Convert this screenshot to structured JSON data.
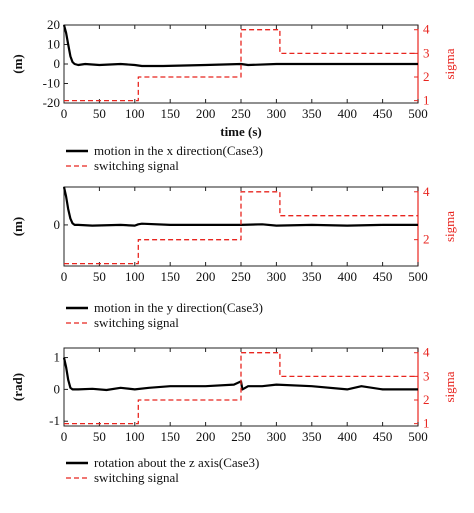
{
  "chart_data": [
    {
      "type": "line",
      "ylabel": "(m)",
      "y2label": "sigma",
      "xlabel": "time (s)",
      "xlim": [
        0,
        500
      ],
      "ylim": [
        -20,
        20
      ],
      "y2lim": [
        0.9,
        4.2
      ],
      "xticks": [
        0,
        50,
        100,
        150,
        200,
        250,
        300,
        350,
        400,
        450,
        500
      ],
      "yticks": [
        -20,
        -10,
        0,
        10,
        20
      ],
      "y2ticks": [
        1,
        2,
        3,
        4
      ],
      "legend": {
        "position": "below",
        "entries": [
          "motion in the x direction(Case3)",
          "switching signal"
        ]
      },
      "series": [
        {
          "name": "motion in the x direction(Case3)",
          "color": "#000000",
          "axis": "left",
          "x": [
            0,
            3,
            6,
            9,
            12,
            15,
            20,
            30,
            50,
            80,
            100,
            110,
            140,
            200,
            250,
            260,
            300,
            350,
            400,
            450,
            500
          ],
          "y": [
            20,
            16,
            10,
            4,
            1,
            0,
            -0.5,
            0,
            -0.5,
            0,
            -0.5,
            -1,
            -1,
            -0.5,
            0,
            -0.5,
            0,
            0,
            0,
            0,
            0
          ]
        },
        {
          "name": "switching signal",
          "color": "#e8251f",
          "axis": "right",
          "x": [
            0,
            105,
            105,
            250,
            250,
            305,
            305,
            500
          ],
          "y": [
            1,
            1,
            2,
            2,
            4,
            4,
            3,
            3
          ]
        }
      ]
    },
    {
      "type": "line",
      "ylabel": "(m)",
      "y2label": "sigma",
      "xlabel": "",
      "xlim": [
        0,
        500
      ],
      "ylim": [
        -1.3,
        1.2
      ],
      "y2lim": [
        0.9,
        4.2
      ],
      "xticks": [
        0,
        50,
        100,
        150,
        200,
        250,
        300,
        350,
        400,
        450,
        500
      ],
      "yticks": [
        0
      ],
      "y2ticks": [
        2,
        4
      ],
      "legend": {
        "position": "below",
        "entries": [
          "motion in the y direction(Case3)",
          "switching signal"
        ]
      },
      "series": [
        {
          "name": "motion in the y direction(Case3)",
          "color": "#000000",
          "axis": "left",
          "x": [
            0,
            3,
            6,
            9,
            12,
            15,
            20,
            40,
            80,
            100,
            105,
            110,
            150,
            200,
            250,
            280,
            300,
            350,
            400,
            450,
            500
          ],
          "y": [
            1.2,
            0.9,
            0.5,
            0.2,
            0.05,
            0,
            0,
            -0.02,
            0,
            -0.02,
            0.02,
            0.04,
            0,
            0,
            0,
            0.02,
            -0.02,
            0,
            -0.02,
            0,
            0
          ]
        },
        {
          "name": "switching signal",
          "color": "#e8251f",
          "axis": "right",
          "x": [
            0,
            105,
            105,
            250,
            250,
            305,
            305,
            500
          ],
          "y": [
            1,
            1,
            2,
            2,
            4,
            4,
            3,
            3
          ]
        }
      ]
    },
    {
      "type": "line",
      "ylabel": "(rad)",
      "y2label": "sigma",
      "xlabel": "",
      "xlim": [
        0,
        500
      ],
      "ylim": [
        -1.15,
        1.3
      ],
      "y2lim": [
        0.9,
        4.2
      ],
      "xticks": [
        0,
        50,
        100,
        150,
        200,
        250,
        300,
        350,
        400,
        450,
        500
      ],
      "yticks": [
        -1,
        0,
        1
      ],
      "y2ticks": [
        1,
        2,
        3,
        4
      ],
      "legend": {
        "position": "below",
        "entries": [
          "rotation about the z axis(Case3)",
          "switching signal"
        ]
      },
      "series": [
        {
          "name": "rotation about the z axis(Case3)",
          "color": "#000000",
          "axis": "left",
          "x": [
            0,
            3,
            6,
            9,
            12,
            15,
            20,
            40,
            60,
            80,
            100,
            120,
            150,
            200,
            240,
            250,
            252,
            260,
            280,
            300,
            350,
            400,
            420,
            450,
            500
          ],
          "y": [
            1.0,
            0.7,
            0.3,
            0.05,
            0,
            0,
            0,
            0.02,
            -0.02,
            0.05,
            0,
            0.05,
            0.1,
            0.1,
            0.15,
            0.25,
            0,
            0.1,
            0.1,
            0.15,
            0.1,
            0,
            0.1,
            0,
            0
          ]
        },
        {
          "name": "switching signal",
          "color": "#e8251f",
          "axis": "right",
          "x": [
            0,
            105,
            105,
            250,
            250,
            305,
            305,
            500
          ],
          "y": [
            1,
            1,
            2,
            2,
            4,
            4,
            3,
            3
          ]
        }
      ]
    }
  ]
}
